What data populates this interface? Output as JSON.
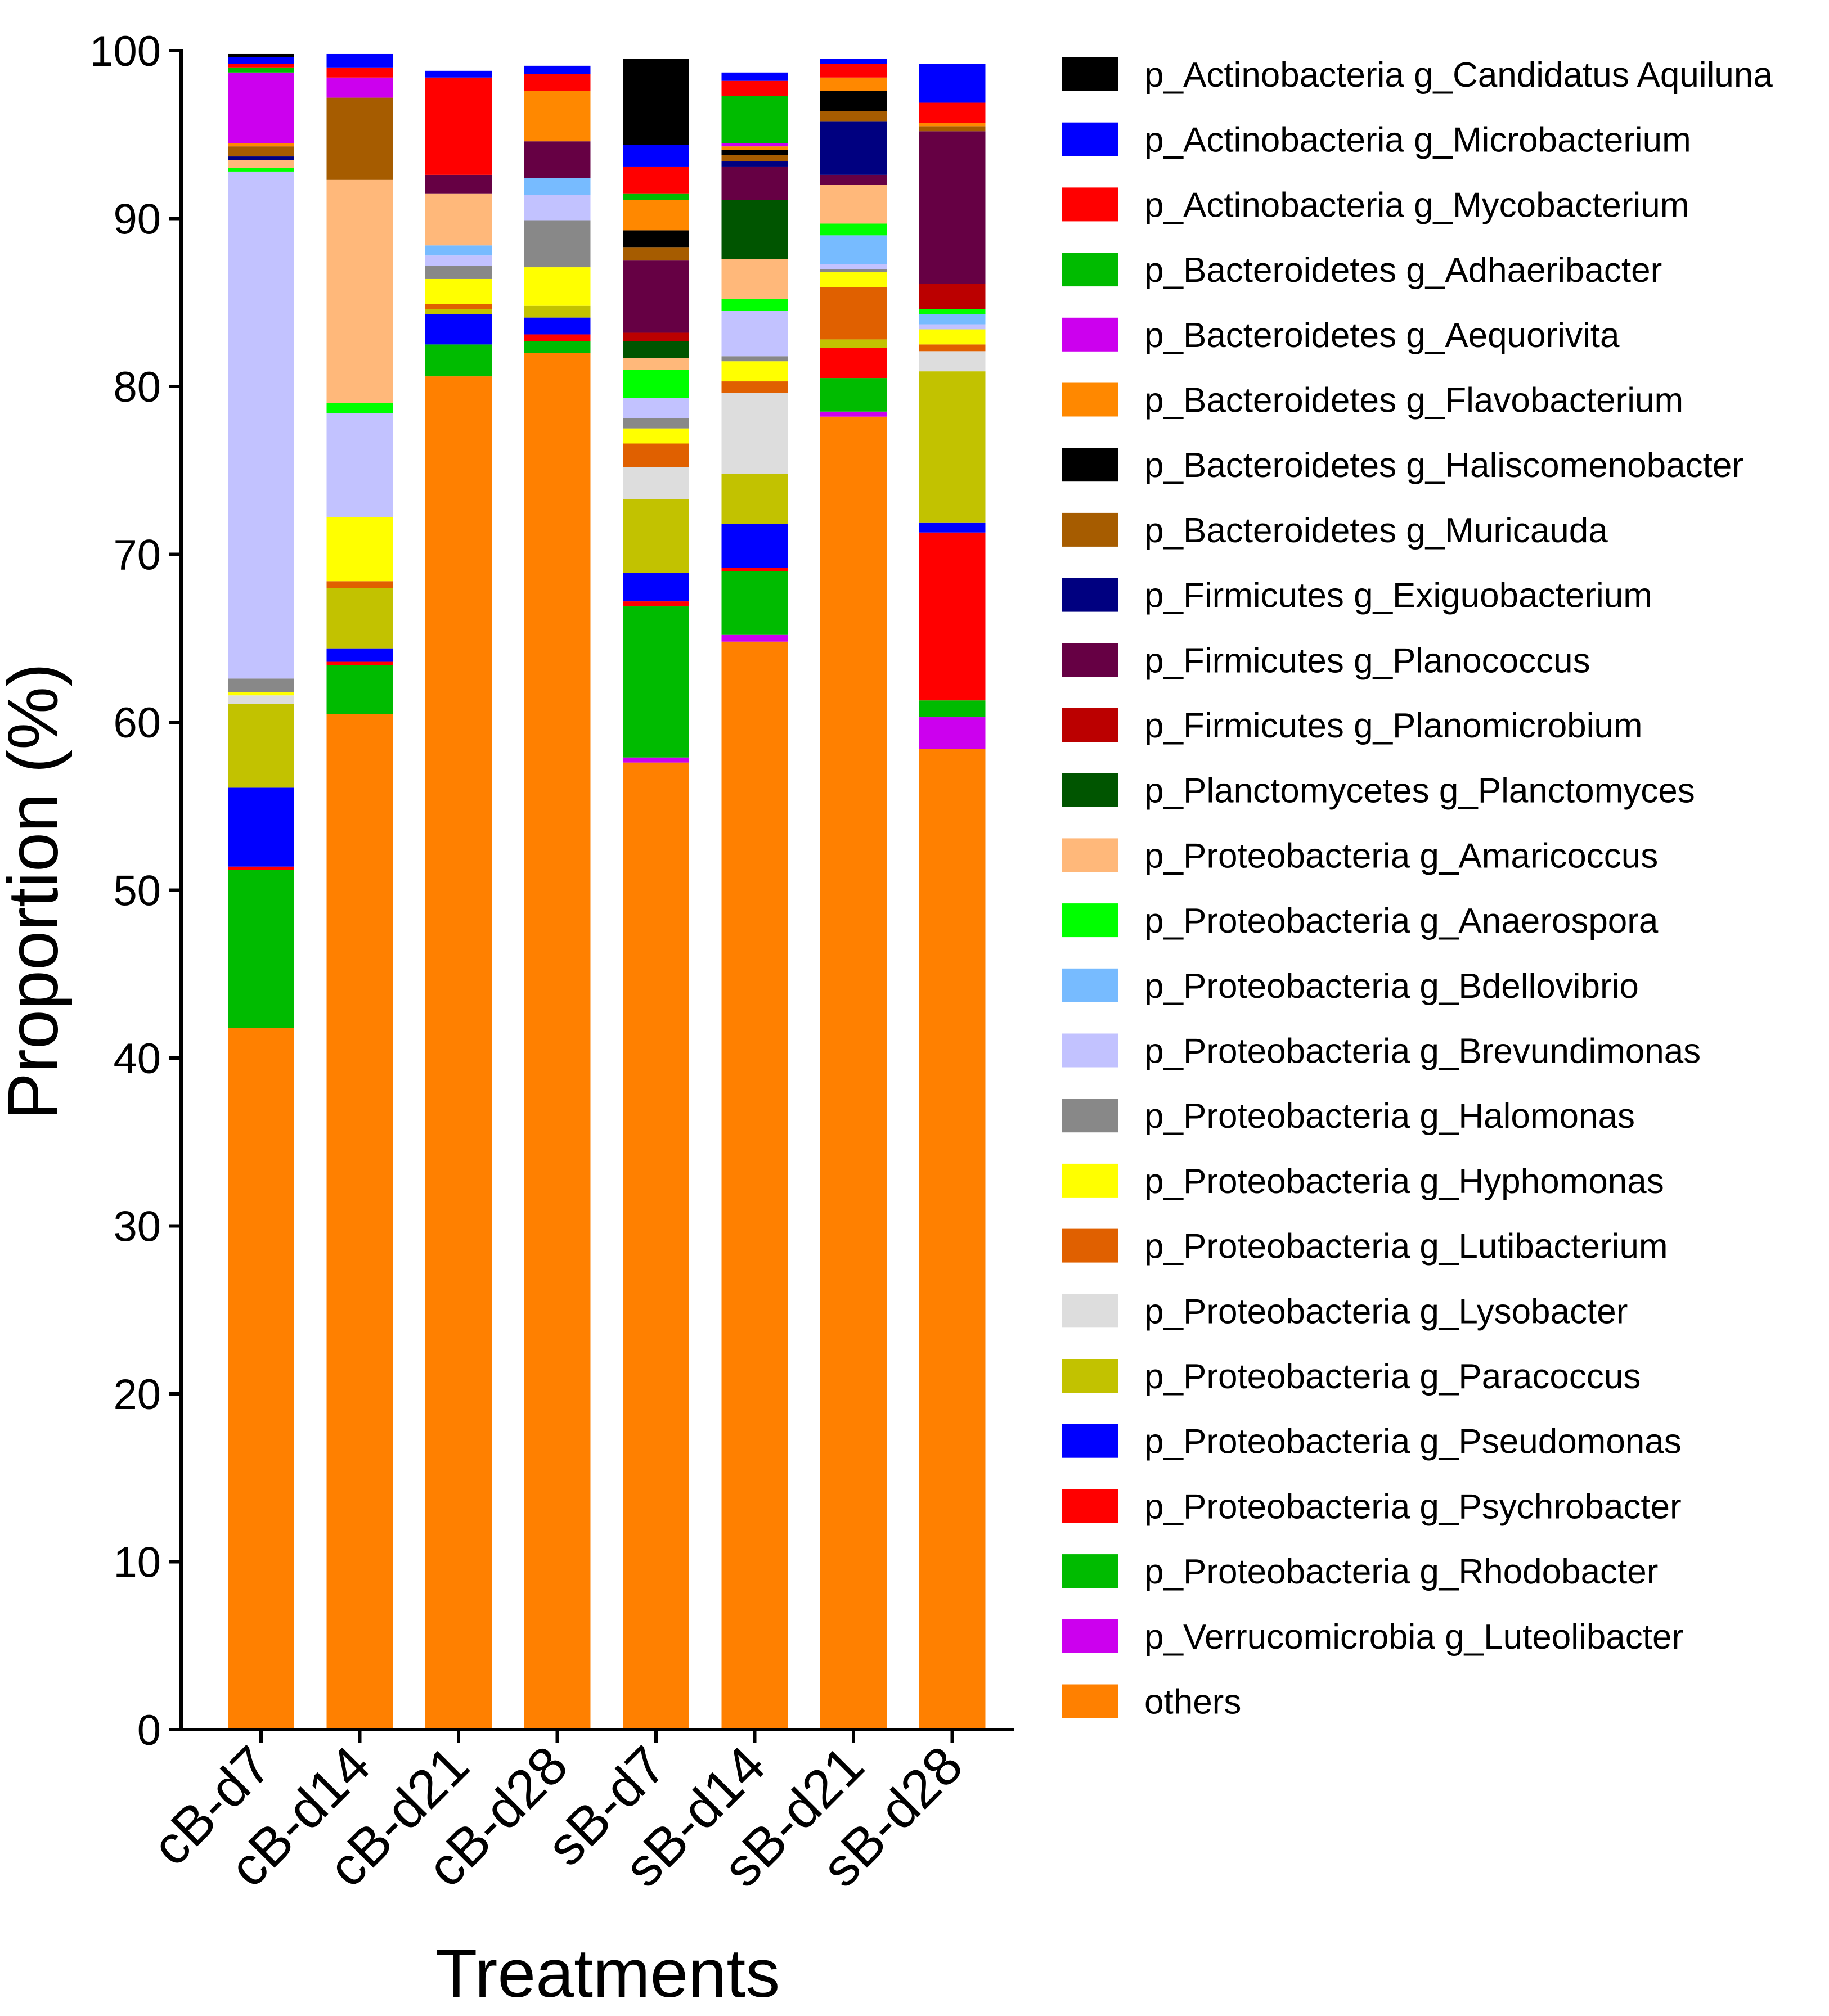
{
  "chart_data": {
    "type": "bar",
    "stacked": true,
    "title": "",
    "xlabel": "Treatments",
    "ylabel": "Proportion (%)",
    "ylim": [
      0,
      100
    ],
    "yticks": [
      "0",
      "10",
      "20",
      "30",
      "40",
      "50",
      "60",
      "70",
      "80",
      "90",
      "100"
    ],
    "grid": false,
    "legend_position": "right",
    "categories": [
      "cB-d7",
      "cB-d14",
      "cB-d21",
      "cB-d28",
      "sB-d7",
      "sB-d14",
      "sB-d21",
      "sB-d28"
    ],
    "series": [
      {
        "name": "others",
        "color": "#FF8000",
        "values": [
          41.8,
          60.5,
          80.6,
          82.0,
          57.6,
          64.8,
          78.2,
          58.4
        ]
      },
      {
        "name": "p_Verrucomicrobia g_Luteolibacter",
        "color": "#CC00EE",
        "values": [
          0.0,
          0.0,
          0.0,
          0.0,
          0.3,
          0.4,
          0.3,
          1.9
        ]
      },
      {
        "name": "p_Proteobacteria g_Rhodobacter",
        "color": "#00BB00",
        "values": [
          9.4,
          2.9,
          1.9,
          0.7,
          9.0,
          3.8,
          2.0,
          1.0
        ]
      },
      {
        "name": "p_Proteobacteria g_Psychrobacter",
        "color": "#FF0000",
        "values": [
          0.2,
          0.2,
          0.0,
          0.4,
          0.3,
          0.2,
          1.8,
          10.0
        ]
      },
      {
        "name": "p_Proteobacteria g_Pseudomonas",
        "color": "#0000FF",
        "values": [
          4.7,
          0.8,
          1.8,
          1.0,
          1.7,
          2.6,
          0.0,
          0.6
        ]
      },
      {
        "name": "p_Proteobacteria g_Paracoccus",
        "color": "#C2C200",
        "values": [
          5.0,
          3.6,
          0.3,
          0.7,
          4.4,
          3.0,
          0.5,
          9.0
        ]
      },
      {
        "name": "p_Proteobacteria g_Lysobacter",
        "color": "#DDDDDD",
        "values": [
          0.5,
          0.0,
          0.0,
          0.0,
          1.9,
          4.8,
          0.0,
          1.2
        ]
      },
      {
        "name": "p_Proteobacteria g_Lutibacterium",
        "color": "#E06000",
        "values": [
          0.0,
          0.4,
          0.3,
          0.0,
          1.4,
          0.7,
          3.1,
          0.4
        ]
      },
      {
        "name": "p_Proteobacteria g_Hyphomonas",
        "color": "#FFFF00",
        "values": [
          0.2,
          3.8,
          1.5,
          2.3,
          0.9,
          1.2,
          0.9,
          0.9
        ]
      },
      {
        "name": "p_Proteobacteria g_Halomonas",
        "color": "#888888",
        "values": [
          0.8,
          0.0,
          0.8,
          2.8,
          0.6,
          0.3,
          0.2,
          0.0
        ]
      },
      {
        "name": "p_Proteobacteria g_Brevundimonas",
        "color": "#C2C2FF",
        "values": [
          30.2,
          6.2,
          0.6,
          1.5,
          1.2,
          2.7,
          0.3,
          0.3
        ]
      },
      {
        "name": "p_Proteobacteria g_Bdellovibrio",
        "color": "#77BBFF",
        "values": [
          0.0,
          0.0,
          0.6,
          1.0,
          0.0,
          0.0,
          1.7,
          0.6
        ]
      },
      {
        "name": "p_Proteobacteria g_Anaerospora",
        "color": "#00FF00",
        "values": [
          0.2,
          0.6,
          0.0,
          0.0,
          1.7,
          0.7,
          0.7,
          0.3
        ]
      },
      {
        "name": "p_Proteobacteria g_Amaricoccus",
        "color": "#FFB87A",
        "values": [
          0.5,
          13.3,
          3.1,
          0.0,
          0.7,
          2.4,
          2.3,
          0.0
        ]
      },
      {
        "name": "p_Planctomycetes g_Planctomyces",
        "color": "#005500",
        "values": [
          0.0,
          0.0,
          0.0,
          0.0,
          1.0,
          3.5,
          0.0,
          0.0
        ]
      },
      {
        "name": "p_Firmicutes g_Planomicrobium",
        "color": "#BB0000",
        "values": [
          0.0,
          0.0,
          0.0,
          0.0,
          0.5,
          0.0,
          0.0,
          1.5
        ]
      },
      {
        "name": "p_Firmicutes g_Planococcus",
        "color": "#660044",
        "values": [
          0.0,
          0.0,
          1.1,
          2.2,
          4.3,
          2.0,
          0.6,
          9.1
        ]
      },
      {
        "name": "p_Firmicutes g_Exiguobacterium",
        "color": "#000080",
        "values": [
          0.2,
          0.0,
          0.0,
          0.0,
          0.0,
          0.3,
          3.2,
          0.0
        ]
      },
      {
        "name": "p_Bacteroidetes g_Muricauda",
        "color": "#A65C00",
        "values": [
          0.6,
          4.9,
          0.0,
          0.0,
          0.8,
          0.4,
          0.6,
          0.3
        ]
      },
      {
        "name": "p_Bacteroidetes g_Haliscomenobacter",
        "color": "#000000",
        "values": [
          0.0,
          0.0,
          0.0,
          0.0,
          1.0,
          0.3,
          1.2,
          0.0
        ]
      },
      {
        "name": "p_Bacteroidetes g_Flavobacterium",
        "color": "#FF8800",
        "values": [
          0.2,
          0.0,
          0.0,
          3.0,
          1.8,
          0.2,
          0.8,
          0.2
        ]
      },
      {
        "name": "p_Bacteroidetes g_Aequorivita",
        "color": "#CC00EE",
        "values": [
          4.2,
          1.2,
          0.0,
          0.0,
          0.0,
          0.2,
          0.0,
          0.0
        ]
      },
      {
        "name": "p_Bacteroidetes g_Adhaeribacter",
        "color": "#00BB00",
        "values": [
          0.3,
          0.0,
          0.0,
          0.0,
          0.4,
          2.8,
          0.0,
          0.0
        ]
      },
      {
        "name": "p_Actinobacteria g_Mycobacterium",
        "color": "#FF0000",
        "values": [
          0.2,
          0.6,
          5.8,
          1.0,
          1.6,
          0.9,
          0.8,
          1.2
        ]
      },
      {
        "name": "p_Actinobacteria g_Microbacterium",
        "color": "#0000FF",
        "values": [
          0.4,
          0.8,
          0.4,
          0.5,
          1.3,
          0.5,
          0.3,
          2.3
        ]
      },
      {
        "name": "p_Actinobacteria g_Candidatus Aquiluna",
        "color": "#000000",
        "values": [
          0.2,
          0.0,
          0.0,
          0.0,
          5.1,
          0.0,
          0.0,
          0.0
        ]
      }
    ],
    "legend": [
      {
        "label": "p_Actinobacteria g_Candidatus Aquiluna",
        "color": "#000000"
      },
      {
        "label": "p_Actinobacteria g_Microbacterium",
        "color": "#0000FF"
      },
      {
        "label": "p_Actinobacteria g_Mycobacterium",
        "color": "#FF0000"
      },
      {
        "label": "p_Bacteroidetes g_Adhaeribacter",
        "color": "#00BB00"
      },
      {
        "label": "p_Bacteroidetes g_Aequorivita",
        "color": "#CC00EE"
      },
      {
        "label": "p_Bacteroidetes g_Flavobacterium",
        "color": "#FF8800"
      },
      {
        "label": "p_Bacteroidetes g_Haliscomenobacter",
        "color": "#000000"
      },
      {
        "label": "p_Bacteroidetes g_Muricauda",
        "color": "#A65C00"
      },
      {
        "label": "p_Firmicutes g_Exiguobacterium",
        "color": "#000080"
      },
      {
        "label": "p_Firmicutes g_Planococcus",
        "color": "#660044"
      },
      {
        "label": "p_Firmicutes g_Planomicrobium",
        "color": "#BB0000"
      },
      {
        "label": "p_Planctomycetes g_Planctomyces",
        "color": "#005500"
      },
      {
        "label": "p_Proteobacteria g_Amaricoccus",
        "color": "#FFB87A"
      },
      {
        "label": "p_Proteobacteria g_Anaerospora",
        "color": "#00FF00"
      },
      {
        "label": "p_Proteobacteria g_Bdellovibrio",
        "color": "#77BBFF"
      },
      {
        "label": "p_Proteobacteria g_Brevundimonas",
        "color": "#C2C2FF"
      },
      {
        "label": "p_Proteobacteria g_Halomonas",
        "color": "#888888"
      },
      {
        "label": "p_Proteobacteria g_Hyphomonas",
        "color": "#FFFF00"
      },
      {
        "label": "p_Proteobacteria g_Lutibacterium",
        "color": "#E06000"
      },
      {
        "label": "p_Proteobacteria g_Lysobacter",
        "color": "#DDDDDD"
      },
      {
        "label": "p_Proteobacteria g_Paracoccus",
        "color": "#C2C200"
      },
      {
        "label": "p_Proteobacteria g_Pseudomonas",
        "color": "#0000FF"
      },
      {
        "label": "p_Proteobacteria g_Psychrobacter",
        "color": "#FF0000"
      },
      {
        "label": "p_Proteobacteria g_Rhodobacter",
        "color": "#00BB00"
      },
      {
        "label": "p_Verrucomicrobia g_Luteolibacter",
        "color": "#CC00EE"
      },
      {
        "label": "others",
        "color": "#FF8000"
      }
    ]
  }
}
